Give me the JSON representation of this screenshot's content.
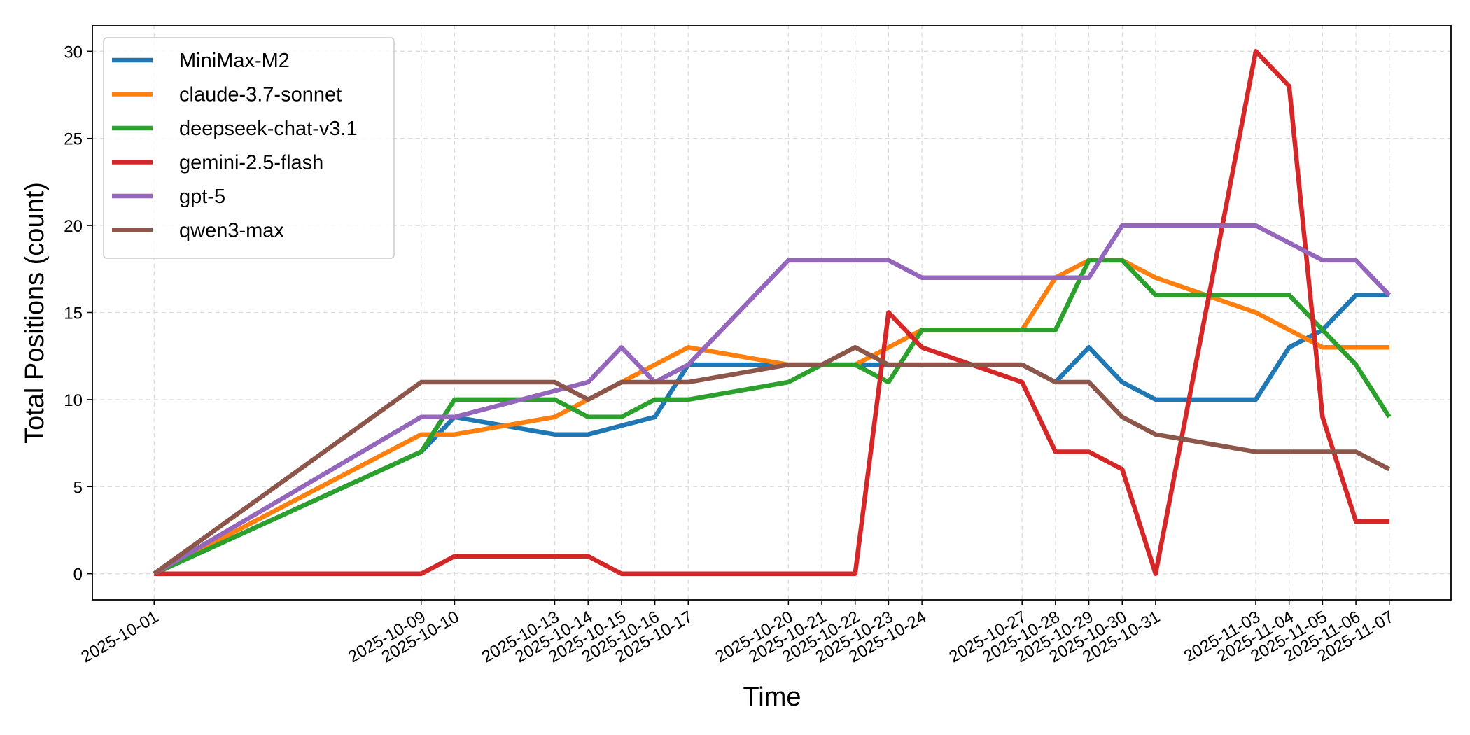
{
  "chart_data": {
    "type": "line",
    "x_label": "Time",
    "y_label": "Total Positions (count)",
    "x": [
      "2025-10-01",
      "2025-10-09",
      "2025-10-10",
      "2025-10-13",
      "2025-10-14",
      "2025-10-15",
      "2025-10-16",
      "2025-10-17",
      "2025-10-20",
      "2025-10-21",
      "2025-10-22",
      "2025-10-23",
      "2025-10-24",
      "2025-10-27",
      "2025-10-28",
      "2025-10-29",
      "2025-10-30",
      "2025-10-31",
      "2025-11-03",
      "2025-11-04",
      "2025-11-05",
      "2025-11-06",
      "2025-11-07"
    ],
    "xticks": [
      "2025-10-01",
      "2025-10-09",
      "2025-10-10",
      "2025-10-13",
      "2025-10-14",
      "2025-10-15",
      "2025-10-16",
      "2025-10-17",
      "2025-10-20",
      "2025-10-21",
      "2025-10-22",
      "2025-10-23",
      "2025-10-24",
      "2025-10-27",
      "2025-10-28",
      "2025-10-29",
      "2025-10-30",
      "2025-10-31",
      "2025-11-03",
      "2025-11-04",
      "2025-11-05",
      "2025-11-06",
      "2025-11-07"
    ],
    "xlim": [
      "2025-09-29T03:36:00Z",
      "2025-11-08T20:24:00Z"
    ],
    "ylim": [
      -1.5,
      31.5
    ],
    "yticks": [
      0,
      5,
      10,
      15,
      20,
      25,
      30
    ],
    "grid": true,
    "legend": "upper left",
    "series": [
      {
        "name": "MiniMax-M2",
        "color": "#1f77b4",
        "values": [
          0,
          7,
          9,
          8,
          8,
          8.5,
          9,
          12,
          12,
          12,
          12,
          12,
          12,
          12,
          11,
          13,
          11,
          10,
          10,
          13,
          14,
          16,
          16
        ]
      },
      {
        "name": "claude-3.7-sonnet",
        "color": "#ff7f0e",
        "values": [
          0,
          8,
          8,
          9,
          10,
          11,
          12,
          13,
          12,
          12,
          12,
          13,
          14,
          14,
          17,
          18,
          18,
          17,
          15,
          14,
          13,
          13,
          13
        ]
      },
      {
        "name": "deepseek-chat-v3.1",
        "color": "#2ca02c",
        "values": [
          0,
          7,
          10,
          10,
          9,
          9,
          10,
          10,
          11,
          12,
          12,
          11,
          14,
          14,
          14,
          18,
          18,
          16,
          16,
          16,
          14,
          12,
          9
        ]
      },
      {
        "name": "gemini-2.5-flash",
        "color": "#d62728",
        "values": [
          0,
          0,
          1,
          1,
          1,
          0,
          0,
          0,
          0,
          0,
          0,
          15,
          13,
          11,
          7,
          7,
          6,
          0,
          30,
          28,
          9,
          3,
          3
        ]
      },
      {
        "name": "gpt-5",
        "color": "#9467bd",
        "values": [
          0,
          9,
          9,
          10.5,
          11,
          13,
          11,
          12,
          18,
          18,
          18,
          18,
          17,
          17,
          17,
          17,
          20,
          20,
          20,
          19,
          18,
          18,
          16
        ]
      },
      {
        "name": "qwen3-max",
        "color": "#8c564b",
        "values": [
          0,
          11,
          11,
          11,
          10,
          11,
          11,
          11,
          12,
          12,
          13,
          12,
          12,
          12,
          11,
          11,
          9,
          8,
          7,
          7,
          7,
          7,
          6
        ]
      }
    ]
  }
}
